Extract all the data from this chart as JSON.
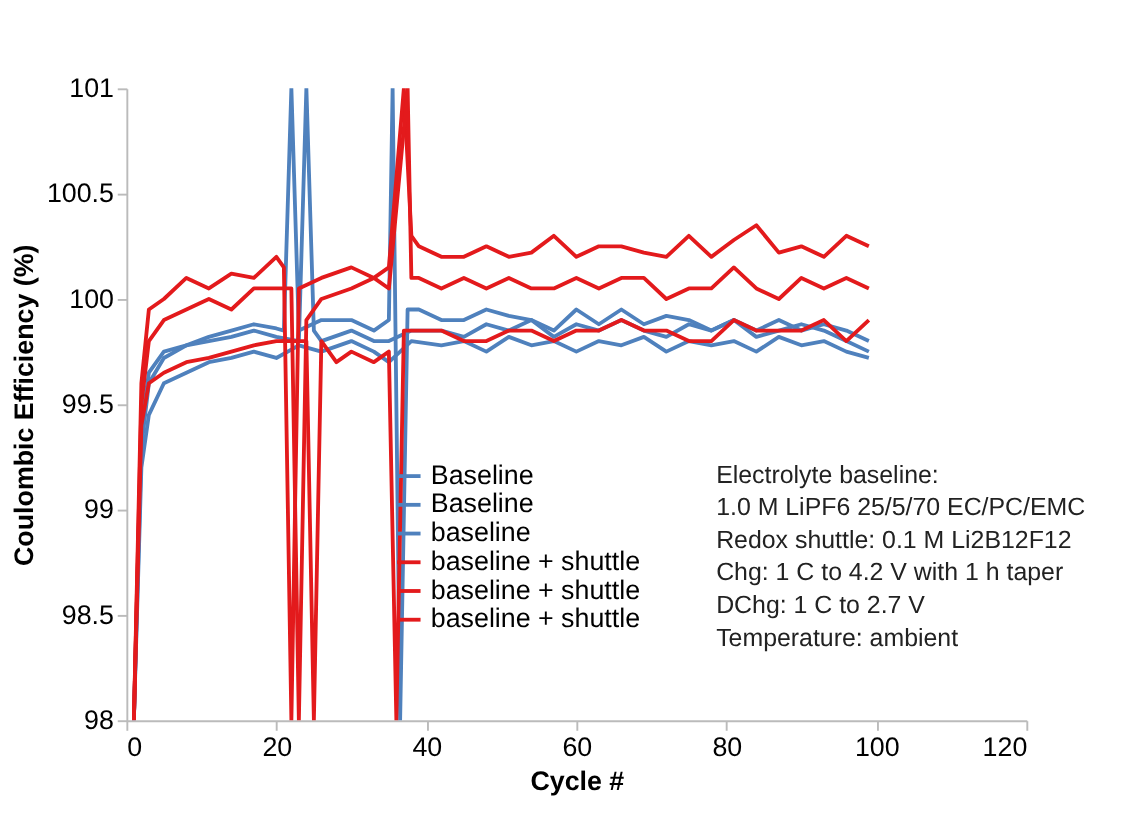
{
  "chart_data": {
    "type": "line",
    "xlabel": "Cycle #",
    "ylabel": "Coulombic Efficiency (%)",
    "xlim": [
      0,
      120
    ],
    "xticks": [
      0,
      20,
      40,
      60,
      80,
      100,
      120
    ],
    "ylim": [
      98,
      101
    ],
    "yticks": [
      98,
      98.5,
      99,
      99.5,
      100,
      100.5,
      101
    ],
    "grid": false,
    "legend": "bottom",
    "line_style": "solid",
    "marker": "none",
    "series": [
      {
        "name": "Baseline",
        "color": "#4f81bd",
        "x": [
          1,
          2,
          3,
          5,
          8,
          11,
          14,
          17,
          20,
          21,
          22,
          23,
          26,
          30,
          33,
          35,
          35.5,
          36.5,
          37.5,
          39,
          42,
          45,
          48,
          51,
          54,
          57,
          60,
          63,
          66,
          69,
          72,
          75,
          78,
          81,
          84,
          87,
          90,
          93,
          96,
          99
        ],
        "values": [
          98,
          99.3,
          99.6,
          99.72,
          99.78,
          99.82,
          99.85,
          99.88,
          99.86,
          99.85,
          101,
          99.85,
          99.9,
          99.9,
          99.85,
          99.9,
          101,
          98,
          99.95,
          99.95,
          99.9,
          99.9,
          99.95,
          99.92,
          99.9,
          99.85,
          99.95,
          99.88,
          99.95,
          99.88,
          99.92,
          99.9,
          99.85,
          99.9,
          99.85,
          99.9,
          99.85,
          99.88,
          99.85,
          99.8
        ]
      },
      {
        "name": "Baseline",
        "color": "#4f81bd",
        "x": [
          1,
          2,
          3,
          5,
          8,
          11,
          14,
          17,
          20,
          23,
          24,
          25,
          26,
          30,
          33,
          35,
          38,
          42,
          45,
          48,
          51,
          54,
          57,
          60,
          63,
          66,
          69,
          72,
          75,
          78,
          81,
          84,
          87,
          90,
          93,
          96,
          99
        ],
        "values": [
          98,
          99.4,
          99.65,
          99.75,
          99.78,
          99.8,
          99.82,
          99.85,
          99.82,
          99.8,
          101,
          99.85,
          99.8,
          99.85,
          99.8,
          99.8,
          99.85,
          99.85,
          99.82,
          99.88,
          99.85,
          99.9,
          99.82,
          99.88,
          99.85,
          99.9,
          99.85,
          99.82,
          99.88,
          99.85,
          99.9,
          99.82,
          99.85,
          99.88,
          99.85,
          99.8,
          99.75
        ]
      },
      {
        "name": "baseline",
        "color": "#4f81bd",
        "x": [
          1,
          2,
          3,
          5,
          8,
          11,
          14,
          17,
          20,
          23,
          26,
          30,
          33,
          35,
          38,
          42,
          45,
          48,
          51,
          54,
          57,
          60,
          63,
          66,
          69,
          72,
          75,
          78,
          81,
          84,
          87,
          90,
          93,
          96,
          99
        ],
        "values": [
          98,
          99.2,
          99.45,
          99.6,
          99.65,
          99.7,
          99.72,
          99.75,
          99.72,
          99.78,
          99.75,
          99.8,
          99.75,
          99.7,
          99.8,
          99.78,
          99.8,
          99.75,
          99.82,
          99.78,
          99.8,
          99.75,
          99.8,
          99.78,
          99.82,
          99.75,
          99.8,
          99.78,
          99.8,
          99.75,
          99.82,
          99.78,
          99.8,
          99.75,
          99.72
        ]
      },
      {
        "name": "baseline + shuttle",
        "color": "#e31a1c",
        "x": [
          1,
          2,
          3,
          5,
          8,
          11,
          14,
          17,
          20,
          21,
          22,
          23,
          26,
          30,
          33,
          35,
          37,
          38,
          39,
          42,
          45,
          48,
          51,
          54,
          57,
          60,
          63,
          66,
          69,
          72,
          75,
          78,
          81,
          84,
          87,
          90,
          93,
          96,
          99
        ],
        "values": [
          98,
          99.6,
          99.95,
          100,
          100.1,
          100.05,
          100.12,
          100.1,
          100.2,
          100.15,
          98,
          100.05,
          100.1,
          100.15,
          100.1,
          100.15,
          101,
          100.3,
          100.25,
          100.2,
          100.2,
          100.25,
          100.2,
          100.22,
          100.3,
          100.2,
          100.25,
          100.25,
          100.22,
          100.2,
          100.3,
          100.2,
          100.28,
          100.35,
          100.22,
          100.25,
          100.2,
          100.3,
          100.25
        ]
      },
      {
        "name": "baseline + shuttle",
        "color": "#e31a1c",
        "x": [
          1,
          2,
          3,
          5,
          8,
          11,
          14,
          17,
          20,
          22,
          23,
          24,
          26,
          30,
          33,
          35,
          37.5,
          38,
          39,
          42,
          45,
          48,
          51,
          54,
          57,
          60,
          63,
          66,
          69,
          72,
          75,
          78,
          81,
          84,
          87,
          90,
          93,
          96,
          99
        ],
        "values": [
          98,
          99.5,
          99.8,
          99.9,
          99.95,
          100,
          99.95,
          100.05,
          100.05,
          100.05,
          98,
          99.9,
          100,
          100.05,
          100.1,
          100.05,
          101,
          100.1,
          100.1,
          100.05,
          100.1,
          100.05,
          100.1,
          100.05,
          100.05,
          100.1,
          100.05,
          100.1,
          100.1,
          100,
          100.05,
          100.05,
          100.15,
          100.05,
          100,
          100.1,
          100.05,
          100.1,
          100.05
        ]
      },
      {
        "name": "baseline + shuttle",
        "color": "#e31a1c",
        "x": [
          1,
          2,
          3,
          5,
          8,
          11,
          14,
          17,
          20,
          24,
          25,
          26,
          28,
          30,
          33,
          35,
          36,
          37,
          39,
          42,
          45,
          48,
          51,
          54,
          57,
          60,
          63,
          66,
          69,
          72,
          75,
          78,
          81,
          84,
          87,
          90,
          93,
          96,
          99
        ],
        "values": [
          98,
          99.4,
          99.6,
          99.65,
          99.7,
          99.72,
          99.75,
          99.78,
          99.8,
          99.8,
          98,
          99.8,
          99.7,
          99.75,
          99.7,
          99.75,
          98,
          99.85,
          99.85,
          99.85,
          99.8,
          99.8,
          99.85,
          99.85,
          99.8,
          99.85,
          99.85,
          99.9,
          99.85,
          99.85,
          99.8,
          99.8,
          99.9,
          99.85,
          99.85,
          99.85,
          99.9,
          99.8,
          99.9
        ]
      }
    ],
    "annotations": [
      "Electrolyte baseline:",
      "1.0 M LiPF6 25/5/70 EC/PC/EMC",
      "Redox shuttle: 0.1 M Li2B12F12",
      "Chg: 1 C to 4.2 V with 1 h taper",
      "DChg: 1 C to 2.7 V",
      "Temperature: ambient"
    ]
  }
}
